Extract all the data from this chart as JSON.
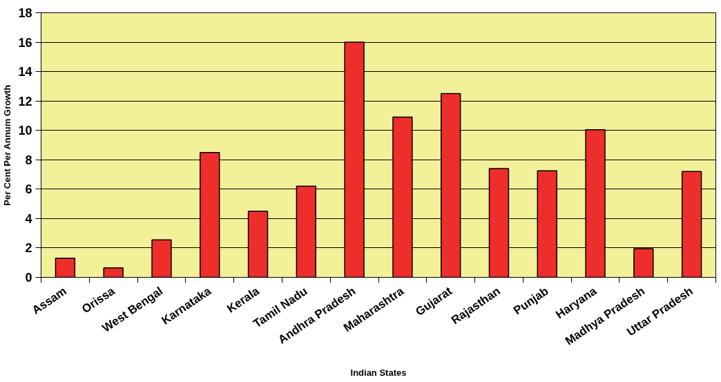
{
  "chart_data": {
    "type": "bar",
    "xlabel": "Indian States",
    "ylabel": "Per Cent Per Annum Growth",
    "categories": [
      "Assam",
      "Orissa",
      "West Bengal",
      "Karnataka",
      "Kerala",
      "Tamil Nadu",
      "Andhra Pradesh",
      "Maharashtra",
      "Gujarat",
      "Rajasthan",
      "Punjab",
      "Haryana",
      "Madhya Pradesh",
      "Uttar Pradesh"
    ],
    "values": [
      1.3,
      0.65,
      2.55,
      8.5,
      4.5,
      6.2,
      16.0,
      10.9,
      12.5,
      7.4,
      7.25,
      10.05,
      1.95,
      7.2
    ],
    "color": "#ee2e2a",
    "ylim": [
      0,
      18
    ],
    "yticks": [
      0,
      2,
      4,
      6,
      8,
      10,
      12,
      14,
      16,
      18
    ],
    "grid": "y"
  }
}
